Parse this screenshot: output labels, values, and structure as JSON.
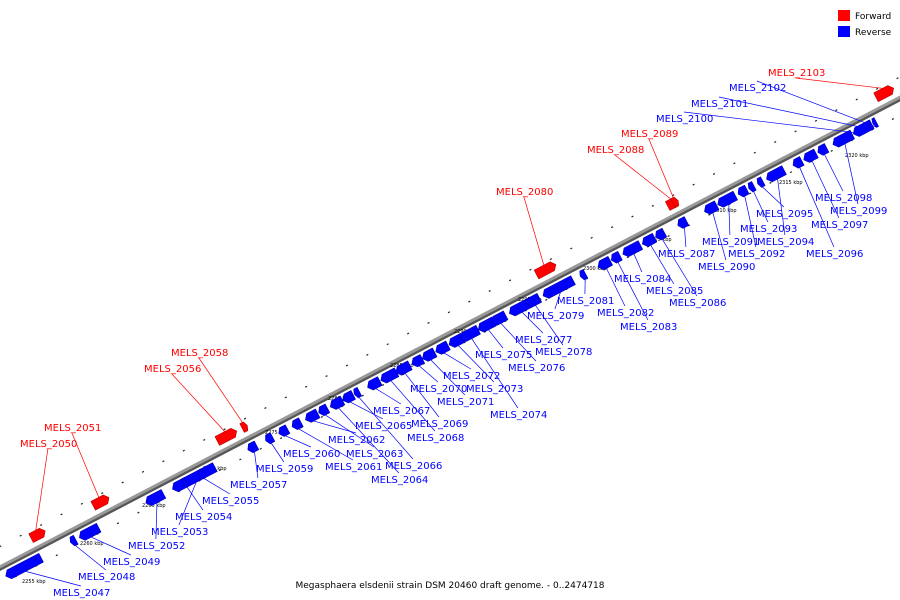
{
  "caption": "Megasphaera elsdenii strain DSM 20460 draft genome. - 0..2474718",
  "legend": [
    {
      "label": "Forward",
      "color": "#ff0000"
    },
    {
      "label": "Reverse",
      "color": "#0000ff"
    }
  ],
  "colors": {
    "forward": "#ff0000",
    "reverse": "#0000ff",
    "backbone": "#999999"
  },
  "ticks": [
    "2255 kbp",
    "2260 kbp",
    "2265 kbp",
    "2270 kbp",
    "2275 kbp",
    "2280 kbp",
    "2285 kbp",
    "2290 kbp",
    "2295 kbp",
    "2300 kbp",
    "2305 kbp",
    "2310 kbp",
    "2315 kbp",
    "2320 kbp"
  ],
  "genes": [
    {
      "name": "MELS_2047",
      "strand": "reverse"
    },
    {
      "name": "MELS_2048",
      "strand": "reverse"
    },
    {
      "name": "MELS_2049",
      "strand": "reverse"
    },
    {
      "name": "MELS_2050",
      "strand": "forward"
    },
    {
      "name": "MELS_2051",
      "strand": "forward"
    },
    {
      "name": "MELS_2052",
      "strand": "reverse"
    },
    {
      "name": "MELS_2053",
      "strand": "reverse"
    },
    {
      "name": "MELS_2054",
      "strand": "reverse"
    },
    {
      "name": "MELS_2055",
      "strand": "reverse"
    },
    {
      "name": "MELS_2056",
      "strand": "forward"
    },
    {
      "name": "MELS_2057",
      "strand": "reverse"
    },
    {
      "name": "MELS_2058",
      "strand": "forward"
    },
    {
      "name": "MELS_2059",
      "strand": "reverse"
    },
    {
      "name": "MELS_2060",
      "strand": "reverse"
    },
    {
      "name": "MELS_2061",
      "strand": "reverse"
    },
    {
      "name": "MELS_2062",
      "strand": "reverse"
    },
    {
      "name": "MELS_2063",
      "strand": "reverse"
    },
    {
      "name": "MELS_2064",
      "strand": "reverse"
    },
    {
      "name": "MELS_2065",
      "strand": "reverse"
    },
    {
      "name": "MELS_2066",
      "strand": "reverse"
    },
    {
      "name": "MELS_2067",
      "strand": "reverse"
    },
    {
      "name": "MELS_2068",
      "strand": "reverse"
    },
    {
      "name": "MELS_2069",
      "strand": "reverse"
    },
    {
      "name": "MELS_2070",
      "strand": "reverse"
    },
    {
      "name": "MELS_2071",
      "strand": "reverse"
    },
    {
      "name": "MELS_2072",
      "strand": "reverse"
    },
    {
      "name": "MELS_2073",
      "strand": "reverse"
    },
    {
      "name": "MELS_2074",
      "strand": "reverse"
    },
    {
      "name": "MELS_2075",
      "strand": "reverse"
    },
    {
      "name": "MELS_2076",
      "strand": "reverse"
    },
    {
      "name": "MELS_2077",
      "strand": "reverse"
    },
    {
      "name": "MELS_2078",
      "strand": "reverse"
    },
    {
      "name": "MELS_2079",
      "strand": "reverse"
    },
    {
      "name": "MELS_2080",
      "strand": "forward"
    },
    {
      "name": "MELS_2081",
      "strand": "reverse"
    },
    {
      "name": "MELS_2082",
      "strand": "reverse"
    },
    {
      "name": "MELS_2083",
      "strand": "reverse"
    },
    {
      "name": "MELS_2084",
      "strand": "reverse"
    },
    {
      "name": "MELS_2085",
      "strand": "reverse"
    },
    {
      "name": "MELS_2086",
      "strand": "reverse"
    },
    {
      "name": "MELS_2087",
      "strand": "reverse"
    },
    {
      "name": "MELS_2088",
      "strand": "forward"
    },
    {
      "name": "MELS_2089",
      "strand": "forward"
    },
    {
      "name": "MELS_2090",
      "strand": "reverse"
    },
    {
      "name": "MELS_2091",
      "strand": "reverse"
    },
    {
      "name": "MELS_2092",
      "strand": "reverse"
    },
    {
      "name": "MELS_2093",
      "strand": "reverse"
    },
    {
      "name": "MELS_2094",
      "strand": "reverse"
    },
    {
      "name": "MELS_2095",
      "strand": "reverse"
    },
    {
      "name": "MELS_2096",
      "strand": "reverse"
    },
    {
      "name": "MELS_2097",
      "strand": "reverse"
    },
    {
      "name": "MELS_2098",
      "strand": "reverse"
    },
    {
      "name": "MELS_2099",
      "strand": "reverse"
    },
    {
      "name": "MELS_2100",
      "strand": "reverse"
    },
    {
      "name": "MELS_2101",
      "strand": "reverse"
    },
    {
      "name": "MELS_2102",
      "strand": "reverse"
    },
    {
      "name": "MELS_2103",
      "strand": "forward"
    }
  ]
}
